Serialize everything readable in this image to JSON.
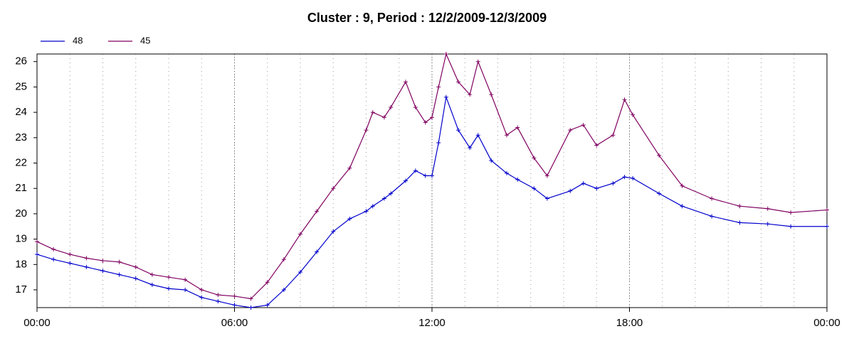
{
  "chart_data": {
    "type": "line",
    "title": "Cluster : 9, Period : 12/2/2009-12/3/2009",
    "x": [
      0,
      0.5,
      1,
      1.5,
      2,
      2.5,
      3,
      3.5,
      4,
      4.5,
      5,
      5.5,
      6,
      6.5,
      7,
      7.5,
      8,
      8.5,
      9,
      9.5,
      10,
      10.2,
      10.55,
      10.75,
      11.2,
      11.5,
      11.8,
      12,
      12.2,
      12.43,
      12.8,
      13.15,
      13.4,
      13.8,
      14.27,
      14.6,
      15.1,
      15.5,
      16.2,
      16.6,
      17,
      17.5,
      17.85,
      18.1,
      18.9,
      19.6,
      20.5,
      21.35,
      22.2,
      22.9,
      24
    ],
    "series": [
      {
        "name": "48",
        "color": "#0000cc",
        "values": [
          18.4,
          18.2,
          18.05,
          17.9,
          17.75,
          17.6,
          17.45,
          17.2,
          17.05,
          17.0,
          16.7,
          16.55,
          16.4,
          16.3,
          16.4,
          17.0,
          17.7,
          18.5,
          19.3,
          19.8,
          20.1,
          20.3,
          20.6,
          20.8,
          21.3,
          21.7,
          21.5,
          21.5,
          22.8,
          24.6,
          23.3,
          22.6,
          23.1,
          22.1,
          21.6,
          21.35,
          21.0,
          20.6,
          20.9,
          21.2,
          21.0,
          21.2,
          21.45,
          21.4,
          20.8,
          20.3,
          19.9,
          19.65,
          19.6,
          19.5,
          19.5
        ]
      },
      {
        "name": "45",
        "color": "#800060",
        "values": [
          18.9,
          18.6,
          18.4,
          18.25,
          18.15,
          18.1,
          17.9,
          17.6,
          17.5,
          17.4,
          17.0,
          16.8,
          16.75,
          16.65,
          17.3,
          18.2,
          19.2,
          20.1,
          21.0,
          21.8,
          23.3,
          24.0,
          23.8,
          24.2,
          25.2,
          24.2,
          23.6,
          23.8,
          25.0,
          26.3,
          25.2,
          24.7,
          26.0,
          24.7,
          23.1,
          23.4,
          22.2,
          21.5,
          23.3,
          23.5,
          22.7,
          23.1,
          24.5,
          23.9,
          22.3,
          21.1,
          20.6,
          20.3,
          20.2,
          20.05,
          20.15
        ]
      }
    ],
    "xlim": [
      0,
      24
    ],
    "xticks": [
      {
        "value": 0,
        "label": "00:00"
      },
      {
        "value": 6,
        "label": "06:00"
      },
      {
        "value": 12,
        "label": "12:00"
      },
      {
        "value": 18,
        "label": "18:00"
      },
      {
        "value": 24,
        "label": "00:00"
      }
    ],
    "x_minor_ticks": [
      0,
      1,
      2,
      3,
      4,
      5,
      6,
      7,
      8,
      9,
      10,
      11,
      12,
      13,
      14,
      15,
      16,
      17,
      18,
      19,
      20,
      21,
      22,
      23,
      24
    ],
    "ylim": [
      16.3,
      26.3
    ],
    "yticks": [
      17,
      18,
      19,
      20,
      21,
      22,
      23,
      24,
      25,
      26
    ],
    "grid": true,
    "legend": "top-left"
  }
}
